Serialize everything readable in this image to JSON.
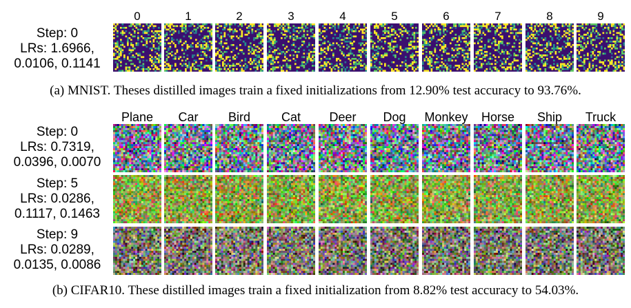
{
  "mnist": {
    "columns": [
      "0",
      "1",
      "2",
      "3",
      "4",
      "5",
      "6",
      "7",
      "8",
      "9"
    ],
    "row": {
      "line1": "Step: 0",
      "line2": "LRs: 1.6966,",
      "line3": "0.0106, 0.1141"
    },
    "caption": "(a) MNIST. Theses distilled images train a fixed initializations from 12.90% test accuracy to 93.76%.",
    "palette": [
      "#3b0f6f",
      "#3b0f6f",
      "#3b0f6f",
      "#2a1a6b",
      "#21908c",
      "#5ec962",
      "#fde725"
    ]
  },
  "cifar": {
    "columns": [
      "Plane",
      "Car",
      "Bird",
      "Cat",
      "Deer",
      "Dog",
      "Monkey",
      "Horse",
      "Ship",
      "Truck"
    ],
    "rows": [
      {
        "line1": "Step: 0",
        "line2": "LRs: 0.7319,",
        "line3": "0.0396, 0.0070"
      },
      {
        "line1": "Step: 5",
        "line2": "LRs: 0.0286,",
        "line3": "0.1117, 0.1463"
      },
      {
        "line1": "Step: 9",
        "line2": "LRs: 0.0289,",
        "line3": "0.0135, 0.0086"
      }
    ],
    "caption": "(b) CIFAR10. These distilled images train a fixed initialization from 8.82% test accuracy to 54.03%."
  }
}
